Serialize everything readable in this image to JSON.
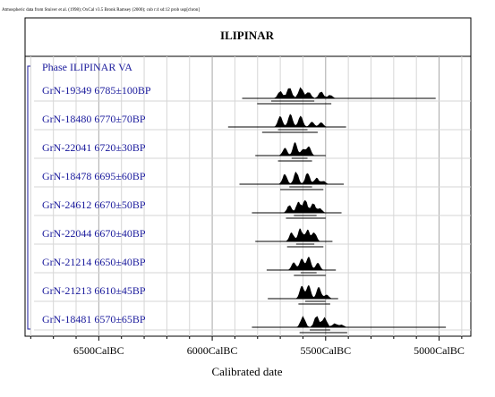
{
  "chart_data": {
    "type": "calibration-plot",
    "credit": "Atmospheric data from Stuiver et al. (1998); OxCal v3.5 Bronk Ramsey (2000); cub r:4 sd:12 prob usp[chron]",
    "title": "ILIPINAR",
    "phase_label": "Phase ILIPINAR VA",
    "xlabel": "Calibrated date",
    "x_ticks": [
      {
        "value": 6500,
        "label": "6500CalBC"
      },
      {
        "value": 6000,
        "label": "6000CalBC"
      },
      {
        "value": 5500,
        "label": "5500CalBC"
      },
      {
        "value": 5000,
        "label": "5000CalBC"
      }
    ],
    "x_range_calBC": [
      6825,
      4860
    ],
    "samples": [
      {
        "lab": "GrN-19349",
        "bp": "6785±100BP",
        "line": [
          5868,
          5015
        ],
        "range2": [
          5802,
          5475
        ],
        "range1": [
          5740,
          5550
        ],
        "peaks": [
          [
            5700,
            0.6
          ],
          [
            5660,
            1.0
          ],
          [
            5610,
            0.9
          ],
          [
            5575,
            0.5
          ],
          [
            5520,
            0.55
          ],
          [
            5480,
            0.3
          ]
        ]
      },
      {
        "lab": "GrN-18480",
        "bp": "6770±70BP",
        "line": [
          5930,
          5410
        ],
        "range2": [
          5780,
          5535
        ],
        "range1": [
          5710,
          5580
        ],
        "peaks": [
          [
            5700,
            0.85
          ],
          [
            5655,
            1.0
          ],
          [
            5610,
            0.85
          ],
          [
            5560,
            0.4
          ],
          [
            5520,
            0.35
          ]
        ]
      },
      {
        "lab": "GrN-22041",
        "bp": "6720±30BP",
        "line": [
          5810,
          5500
        ],
        "range2": [
          5710,
          5560
        ],
        "range1": [
          5650,
          5580
        ],
        "peaks": [
          [
            5680,
            0.6
          ],
          [
            5635,
            1.0
          ],
          [
            5600,
            0.45
          ],
          [
            5575,
            0.7
          ]
        ]
      },
      {
        "lab": "GrN-18478",
        "bp": "6695±60BP",
        "line": [
          5880,
          5420
        ],
        "range2": [
          5700,
          5510
        ],
        "range1": [
          5660,
          5560
        ],
        "peaks": [
          [
            5680,
            0.8
          ],
          [
            5630,
            1.0
          ],
          [
            5580,
            0.9
          ],
          [
            5540,
            0.5
          ],
          [
            5510,
            0.25
          ]
        ]
      },
      {
        "lab": "GrN-24612",
        "bp": "6670±50BP",
        "line": [
          5825,
          5430
        ],
        "range2": [
          5675,
          5500
        ],
        "range1": [
          5640,
          5540
        ],
        "peaks": [
          [
            5660,
            0.6
          ],
          [
            5620,
            0.85
          ],
          [
            5590,
            1.0
          ],
          [
            5555,
            0.75
          ],
          [
            5525,
            0.35
          ]
        ]
      },
      {
        "lab": "GrN-22044",
        "bp": "6670±40BP",
        "line": [
          5810,
          5470
        ],
        "range2": [
          5670,
          5510
        ],
        "range1": [
          5630,
          5550
        ],
        "peaks": [
          [
            5650,
            0.7
          ],
          [
            5612,
            1.0
          ],
          [
            5580,
            0.9
          ],
          [
            5550,
            0.7
          ]
        ]
      },
      {
        "lab": "GrN-21214",
        "bp": "6650±40BP",
        "line": [
          5760,
          5455
        ],
        "range2": [
          5640,
          5500
        ],
        "range1": [
          5610,
          5540
        ],
        "peaks": [
          [
            5640,
            0.6
          ],
          [
            5605,
            0.85
          ],
          [
            5575,
            1.0
          ],
          [
            5535,
            0.55
          ]
        ]
      },
      {
        "lab": "GrN-21213",
        "bp": "6610±45BP",
        "line": [
          5755,
          5445
        ],
        "range2": [
          5620,
          5480
        ],
        "range1": [
          5590,
          5500
        ],
        "peaks": [
          [
            5605,
            0.95
          ],
          [
            5575,
            1.0
          ],
          [
            5530,
            0.9
          ],
          [
            5495,
            0.3
          ]
        ]
      },
      {
        "lab": "GrN-18481",
        "bp": "6570±65BP",
        "line": [
          5825,
          4970
        ],
        "range2": [
          5615,
          5405
        ],
        "range1": [
          5570,
          5480
        ],
        "peaks": [
          [
            5600,
            0.85
          ],
          [
            5540,
            1.0
          ],
          [
            5505,
            0.85
          ],
          [
            5460,
            0.3
          ],
          [
            5430,
            0.2
          ]
        ]
      }
    ]
  }
}
